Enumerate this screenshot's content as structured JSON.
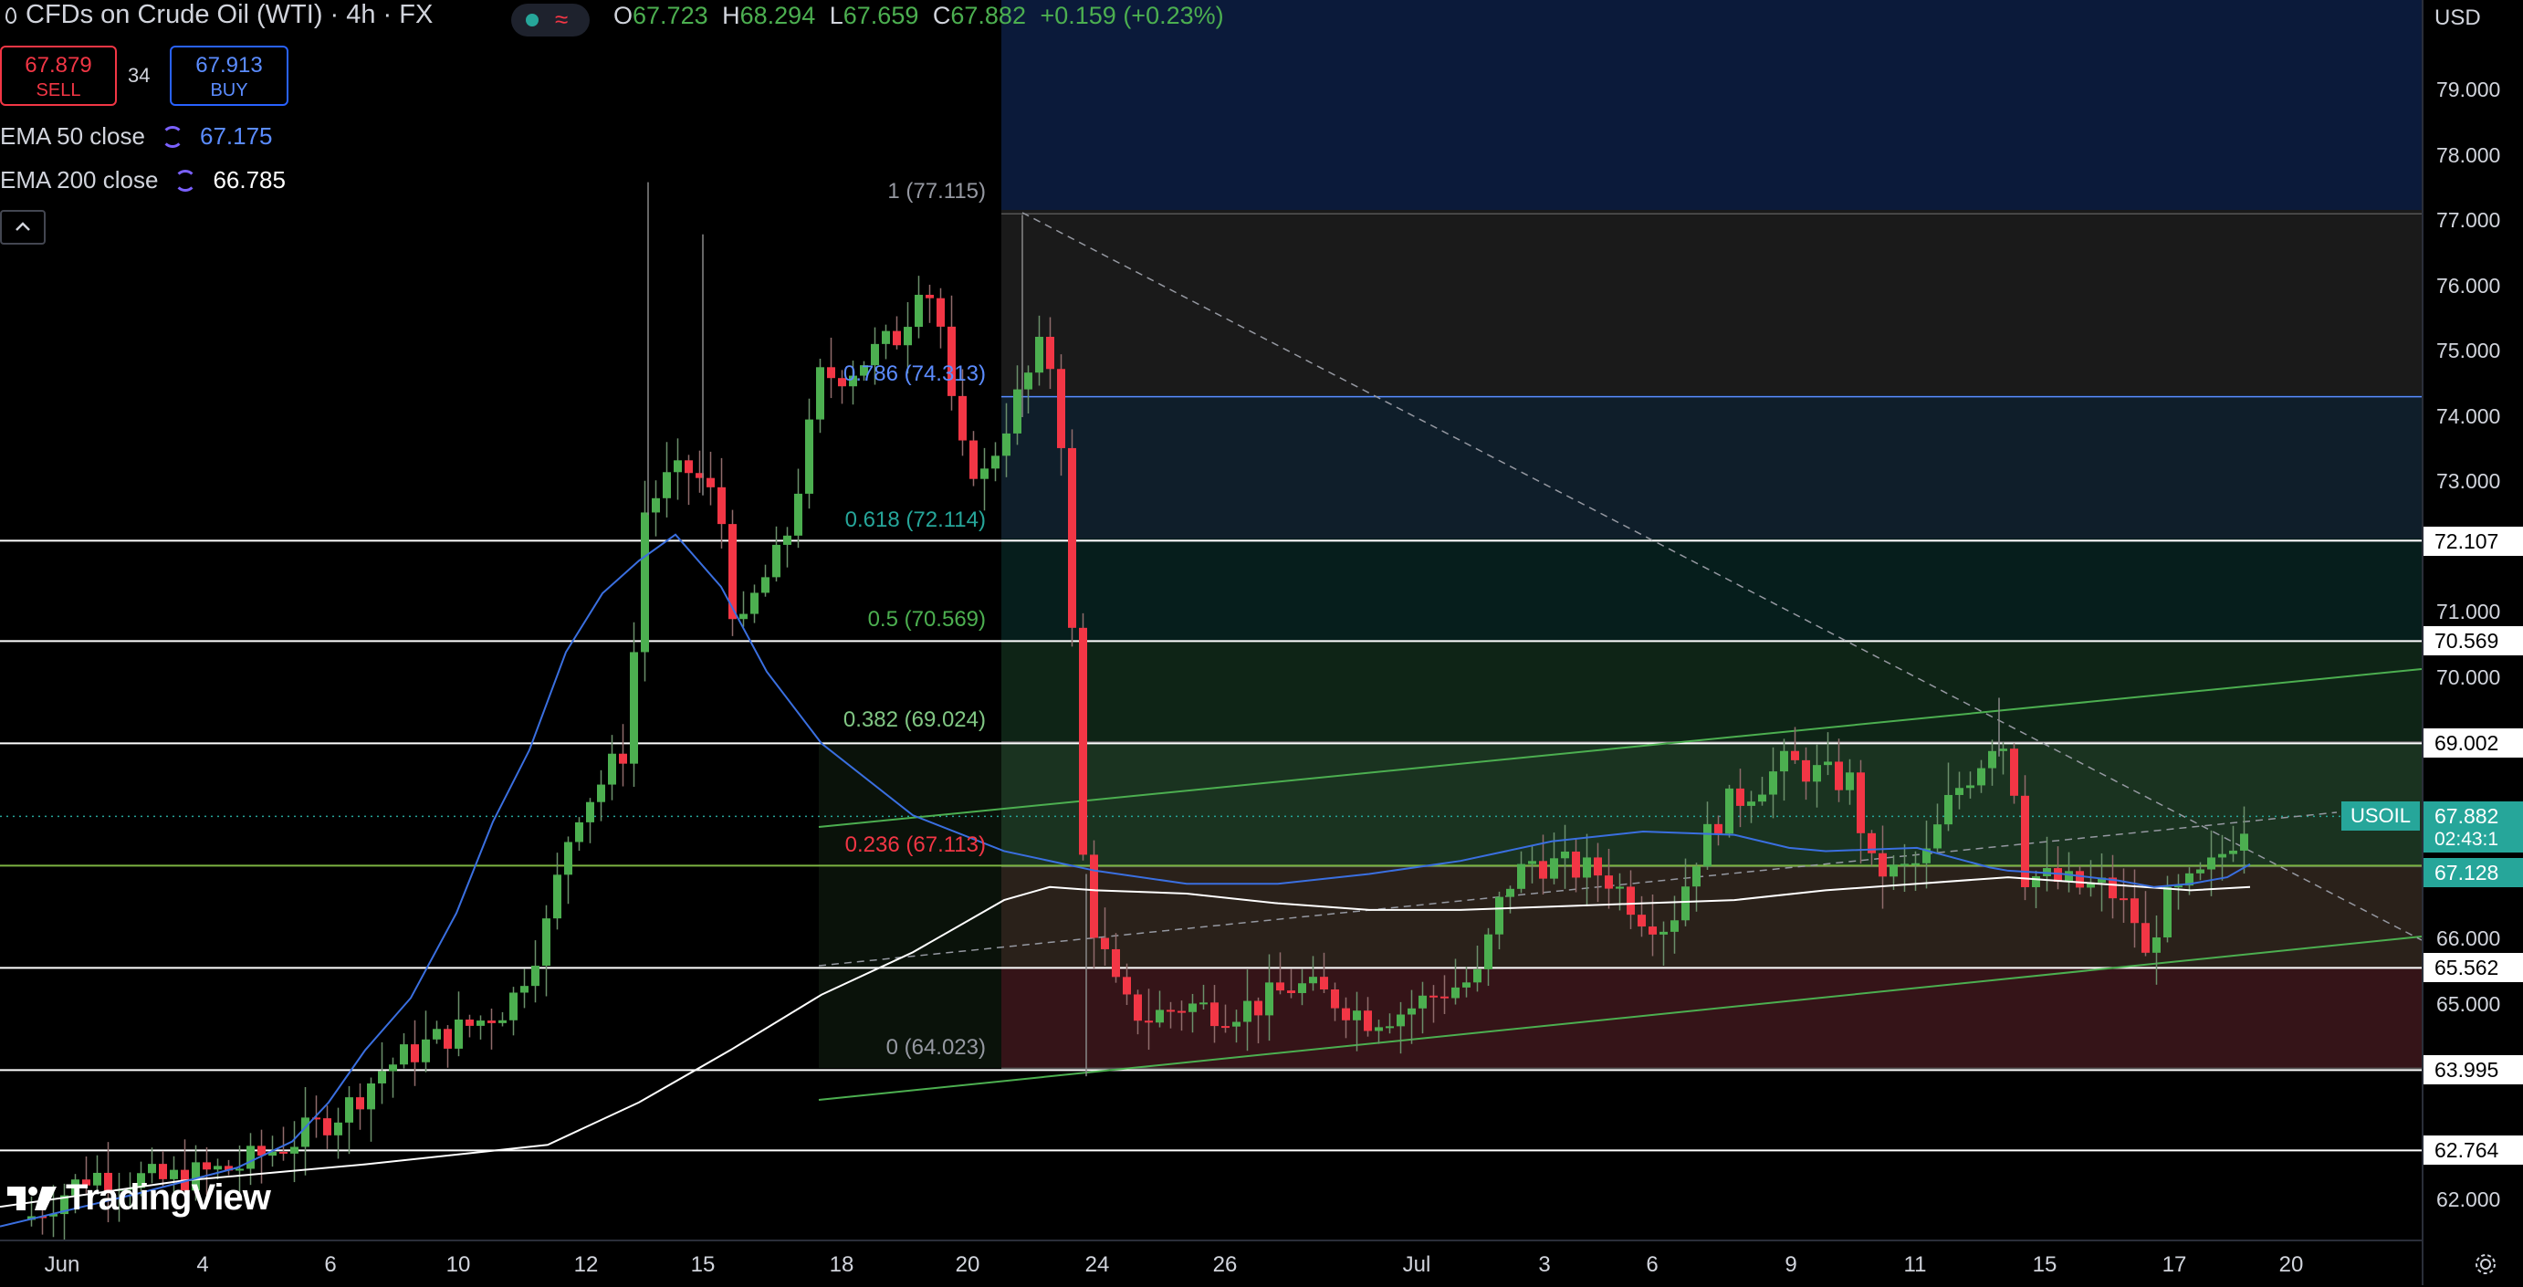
{
  "header": {
    "title": "CFDs on Crude Oil (WTI) · 4h · FX",
    "ohlc": {
      "open_label": "O",
      "open": "67.723",
      "high_label": "H",
      "high": "68.294",
      "low_label": "L",
      "low": "67.659",
      "close_label": "C",
      "close": "67.882",
      "change": "+0.159 (+0.23%)"
    },
    "status_icons": [
      "market-open-dot-icon",
      "wave-icon"
    ]
  },
  "trade": {
    "sell_price": "67.879",
    "sell_label": "SELL",
    "spread": "34",
    "buy_price": "67.913",
    "buy_label": "BUY"
  },
  "indicators": [
    {
      "label": "EMA 50 close",
      "value": "67.175",
      "color": "#5b8cff"
    },
    {
      "label": "EMA 200 close",
      "value": "66.785",
      "color": "#ffffff"
    }
  ],
  "price_axis": {
    "currency": "USD",
    "ticks": [
      "79.000",
      "78.000",
      "77.000",
      "76.000",
      "75.000",
      "74.000",
      "73.000",
      "71.000",
      "70.000",
      "66.000",
      "65.000",
      "62.000"
    ],
    "tags": [
      {
        "text": "72.107",
        "bg": "#ffffff",
        "fg": "#000000"
      },
      {
        "text": "70.569",
        "bg": "#ffffff",
        "fg": "#000000"
      },
      {
        "text": "69.002",
        "bg": "#ffffff",
        "fg": "#000000"
      },
      {
        "text": "67.882",
        "bg": "#26a69a",
        "fg": "#ffffff"
      },
      {
        "text": "02:43:1",
        "bg": "#26a69a",
        "fg": "#ffffff"
      },
      {
        "text": "67.128",
        "bg": "#26a69a",
        "fg": "#ffffff"
      },
      {
        "text": "65.562",
        "bg": "#ffffff",
        "fg": "#000000"
      },
      {
        "text": "63.995",
        "bg": "#ffffff",
        "fg": "#000000"
      },
      {
        "text": "62.764",
        "bg": "#ffffff",
        "fg": "#000000"
      }
    ],
    "symbol_tag": "USOIL"
  },
  "time_axis": {
    "ticks": [
      "Jun",
      "4",
      "6",
      "10",
      "12",
      "15",
      "18",
      "20",
      "24",
      "26",
      "Jul",
      "3",
      "6",
      "9",
      "11",
      "15",
      "17",
      "20"
    ]
  },
  "fibonacci": [
    {
      "label": "1 (77.115)",
      "color": "#9598a1"
    },
    {
      "label": "0.786 (74.313)",
      "color": "#5b8cff"
    },
    {
      "label": "0.618 (72.114)",
      "color": "#26a69a"
    },
    {
      "label": "0.5 (70.569)",
      "color": "#4caf50"
    },
    {
      "label": "0.382 (69.024)",
      "color": "#81c784"
    },
    {
      "label": "0.236 (67.113)",
      "color": "#f23645"
    },
    {
      "label": "0 (64.023)",
      "color": "#9598a1"
    }
  ],
  "branding": {
    "logo_text": "TradingView"
  },
  "colors": {
    "up": "#4caf50",
    "down": "#f23645",
    "ema50": "#3a6fe0",
    "ema200": "#ffffff"
  },
  "chart_data": {
    "type": "candlestick",
    "title": "CFDs on Crude Oil (WTI) · 4h · FX",
    "xlabel": "",
    "ylabel": "",
    "ylim": [
      61.4,
      80.1
    ],
    "grid": false,
    "x_ticks": [
      "Jun",
      "4",
      "6",
      "10",
      "12",
      "15",
      "18",
      "20",
      "24",
      "26",
      "Jul",
      "3",
      "6",
      "9",
      "11",
      "15",
      "17",
      "20"
    ],
    "horizontal_levels": [
      72.107,
      70.569,
      69.002,
      67.128,
      65.562,
      63.995,
      62.764
    ],
    "fib_levels": [
      {
        "ratio": 1,
        "price": 77.115
      },
      {
        "ratio": 0.786,
        "price": 74.313
      },
      {
        "ratio": 0.618,
        "price": 72.114
      },
      {
        "ratio": 0.5,
        "price": 70.569
      },
      {
        "ratio": 0.382,
        "price": 69.024
      },
      {
        "ratio": 0.236,
        "price": 67.113
      },
      {
        "ratio": 0,
        "price": 64.023
      }
    ],
    "last_price": 67.882,
    "series": [
      {
        "name": "EMA 50 close",
        "x": [
          0,
          150,
          260,
          320,
          360,
          400,
          450,
          500,
          540,
          580,
          620,
          660,
          700,
          740,
          790,
          840,
          900,
          1000,
          1100,
          1200,
          1300,
          1400,
          1500,
          1600,
          1700,
          1800,
          1900,
          1960,
          2000,
          2100,
          2180,
          2200,
          2260,
          2320,
          2360,
          2400,
          2440,
          2465
        ],
        "values": [
          61.6,
          62.1,
          62.5,
          62.9,
          63.5,
          64.3,
          65.1,
          66.4,
          67.8,
          68.9,
          70.4,
          71.3,
          71.8,
          72.2,
          71.4,
          70.1,
          69.0,
          67.9,
          67.35,
          67.05,
          66.85,
          66.85,
          67.0,
          67.2,
          67.5,
          67.65,
          67.6,
          67.4,
          67.35,
          67.4,
          67.1,
          67.05,
          67.0,
          66.9,
          66.8,
          66.85,
          66.95,
          67.15
        ]
      },
      {
        "name": "EMA 200 close",
        "x": [
          0,
          200,
          400,
          600,
          700,
          800,
          900,
          1000,
          1100,
          1150,
          1200,
          1300,
          1400,
          1500,
          1600,
          1700,
          1800,
          1900,
          2000,
          2100,
          2200,
          2300,
          2400,
          2465
        ],
        "values": [
          61.9,
          62.3,
          62.55,
          62.85,
          63.5,
          64.3,
          65.15,
          65.8,
          66.6,
          66.8,
          66.75,
          66.7,
          66.55,
          66.45,
          66.45,
          66.5,
          66.55,
          66.6,
          66.75,
          66.85,
          66.95,
          66.85,
          66.75,
          66.8
        ]
      }
    ]
  }
}
